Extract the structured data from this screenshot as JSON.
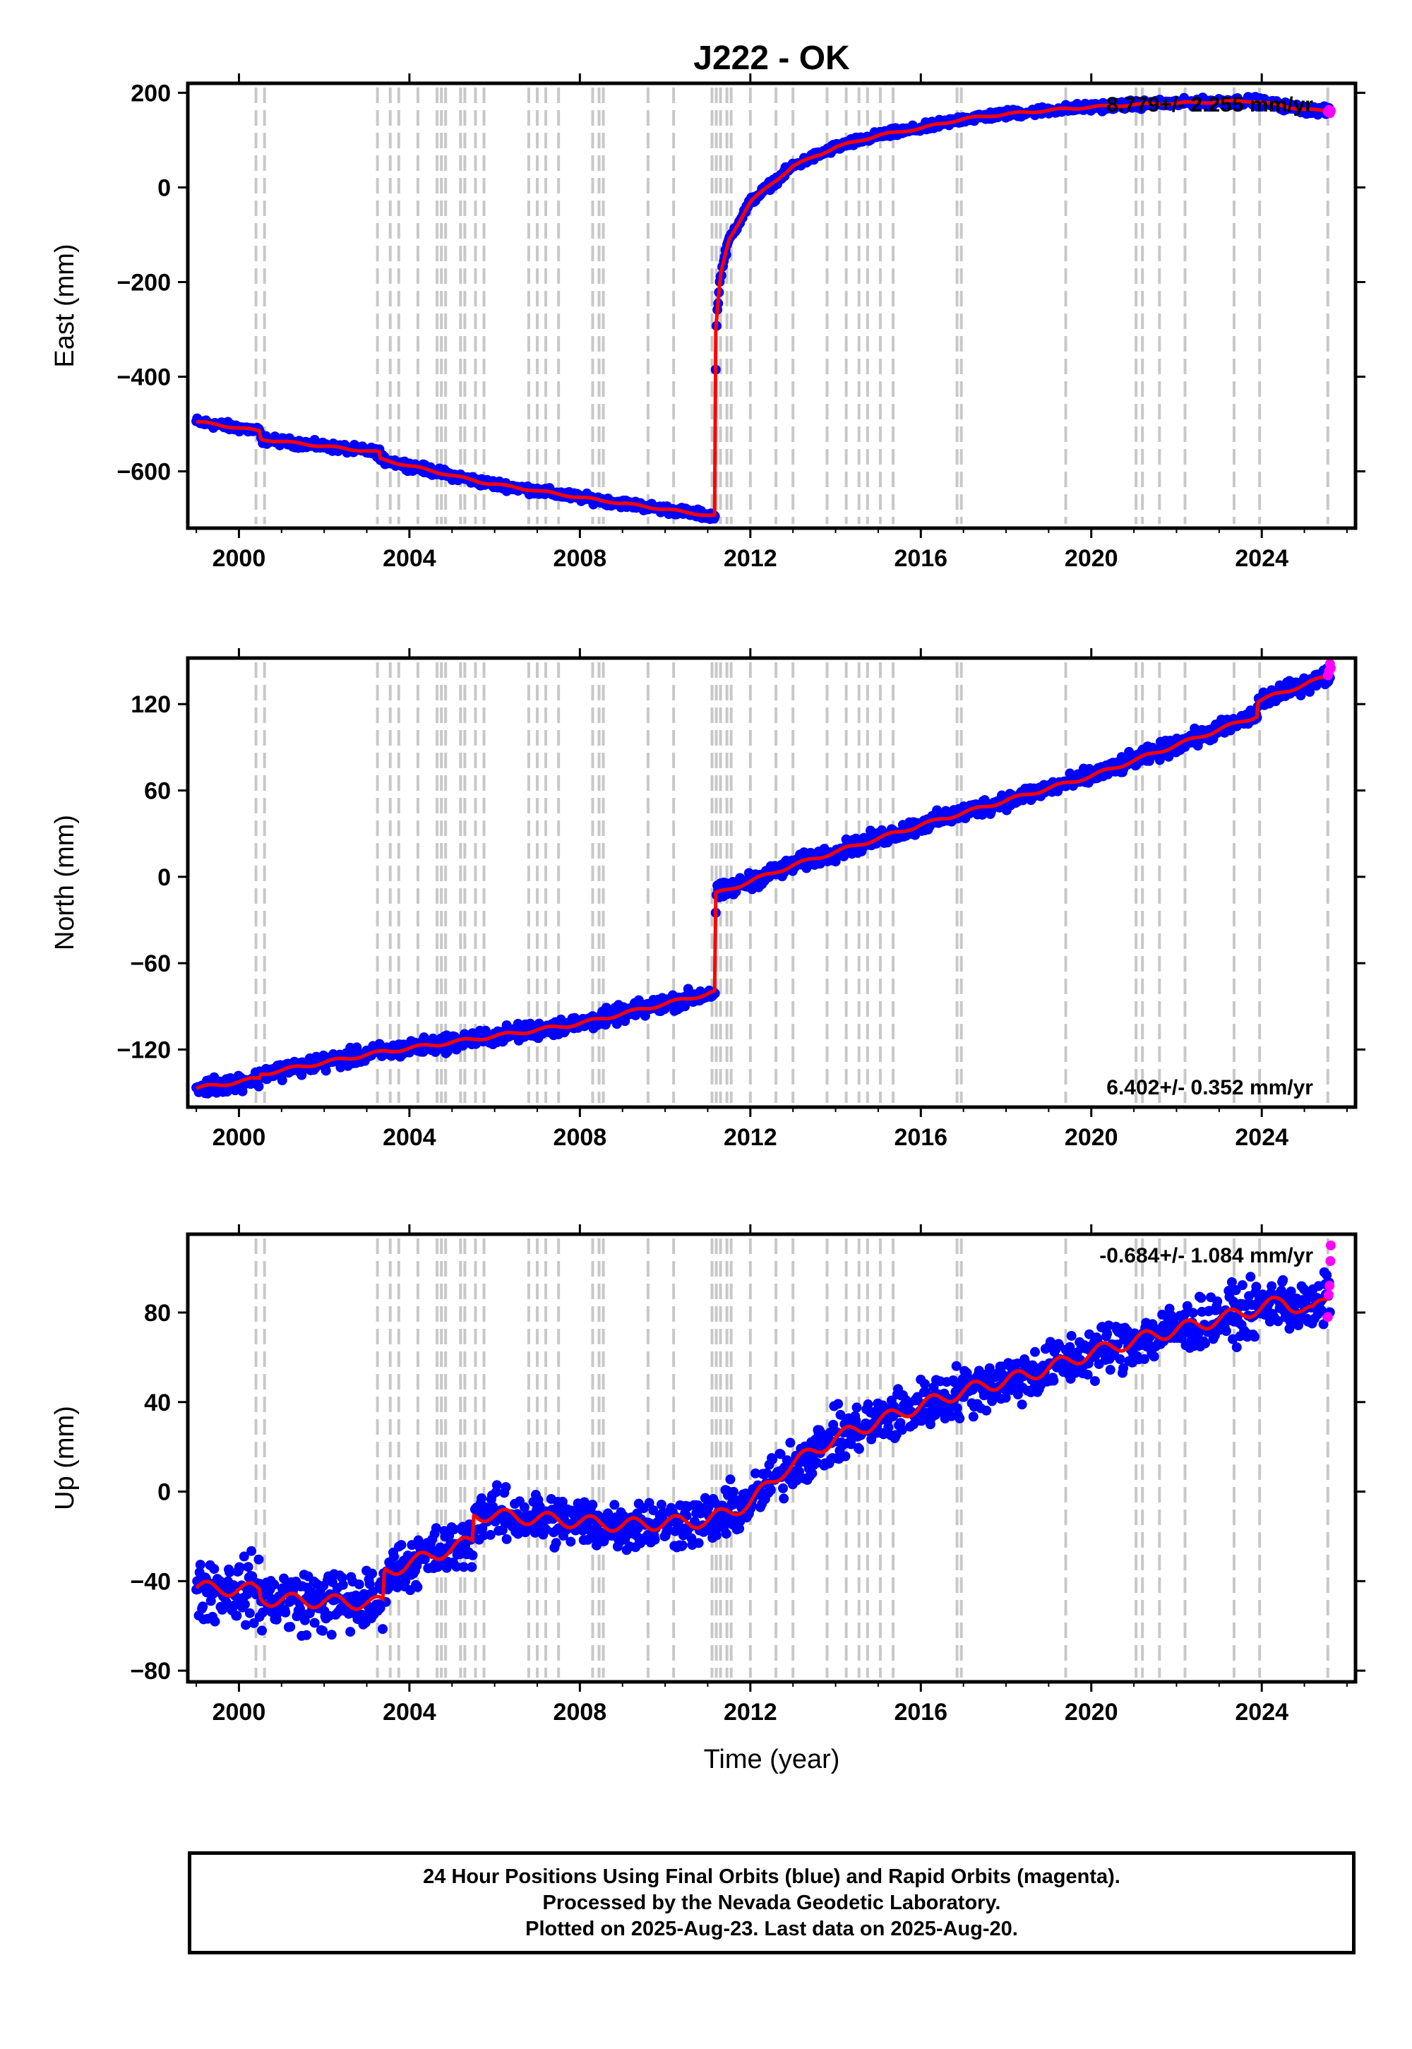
{
  "title": "J222 - OK",
  "footer": {
    "line1": "24 Hour Positions Using Final Orbits (blue) and Rapid Orbits (magenta).",
    "line2": "Processed by the Nevada Geodetic Laboratory.",
    "line3": "Plotted on 2025-Aug-23. Last data on 2025-Aug-20."
  },
  "colors": {
    "final_orbits": "#0000ff",
    "rapid_orbits": "#ff00ff",
    "model": "#ff0000",
    "event_lines": "#c8c8c8"
  },
  "chart_data": [
    {
      "type": "scatter",
      "name": "east",
      "ylabel": "East (mm)",
      "xlabel": "",
      "xlim": [
        1998.8,
        2026.2
      ],
      "ylim": [
        -720,
        220
      ],
      "xticks": [
        2000,
        2004,
        2008,
        2012,
        2016,
        2020,
        2024
      ],
      "xtick_labels": [
        "2000",
        "2004",
        "2008",
        "2012",
        "2016",
        "2020",
        "2024"
      ],
      "yticks": [
        -600,
        -400,
        -200,
        0,
        200
      ],
      "ytick_labels": [
        "−600",
        "−400",
        "−200",
        "0",
        "200"
      ],
      "rate_label": "8.779+/- 2.255 mm/yr",
      "rate_position": "top-right",
      "trend": [
        [
          1999.0,
          -495
        ],
        [
          2000.5,
          -515
        ],
        [
          2000.51,
          -532
        ],
        [
          2003.3,
          -560
        ],
        [
          2003.31,
          -574
        ],
        [
          2005.7,
          -623
        ],
        [
          2008.0,
          -655
        ],
        [
          2011.18,
          -695
        ],
        [
          2011.19,
          -300
        ],
        [
          2011.3,
          -185
        ],
        [
          2011.5,
          -110
        ],
        [
          2012.0,
          -30
        ],
        [
          2013.0,
          45
        ],
        [
          2014.0,
          85
        ],
        [
          2015.0,
          110
        ],
        [
          2016.0,
          125
        ],
        [
          2017.0,
          145
        ],
        [
          2018.0,
          155
        ],
        [
          2019.0,
          163
        ],
        [
          2020.0,
          170
        ],
        [
          2021.0,
          175
        ],
        [
          2022.0,
          178
        ],
        [
          2023.0,
          181
        ],
        [
          2023.8,
          183
        ],
        [
          2024.3,
          175
        ],
        [
          2025.0,
          165
        ],
        [
          2025.6,
          160
        ]
      ],
      "scatter_spread_mm": 6,
      "rapid_points": [
        [
          2025.55,
          160
        ],
        [
          2025.58,
          164
        ],
        [
          2025.6,
          157
        ],
        [
          2025.62,
          162
        ]
      ]
    },
    {
      "type": "scatter",
      "name": "north",
      "ylabel": "North (mm)",
      "xlabel": "",
      "xlim": [
        1998.8,
        2026.2
      ],
      "ylim": [
        -160,
        152
      ],
      "xticks": [
        2000,
        2004,
        2008,
        2012,
        2016,
        2020,
        2024
      ],
      "xtick_labels": [
        "2000",
        "2004",
        "2008",
        "2012",
        "2016",
        "2020",
        "2024"
      ],
      "yticks": [
        -120,
        -60,
        0,
        60,
        120
      ],
      "ytick_labels": [
        "−120",
        "−60",
        "0",
        "60",
        "120"
      ],
      "rate_label": "6.402+/- 0.352 mm/yr",
      "rate_position": "bottom-right",
      "trend": [
        [
          1999.0,
          -147
        ],
        [
          2000.5,
          -140
        ],
        [
          2000.51,
          -137
        ],
        [
          2003.3,
          -122
        ],
        [
          2005.7,
          -112
        ],
        [
          2008.0,
          -102
        ],
        [
          2011.18,
          -80
        ],
        [
          2011.19,
          -12
        ],
        [
          2013.0,
          8
        ],
        [
          2016.0,
          36
        ],
        [
          2020.0,
          70
        ],
        [
          2023.9,
          112
        ],
        [
          2023.91,
          122
        ],
        [
          2025.6,
          140
        ]
      ],
      "scatter_spread_mm": 4,
      "rapid_points": [
        [
          2025.55,
          140
        ],
        [
          2025.58,
          143
        ],
        [
          2025.6,
          148
        ],
        [
          2025.62,
          145
        ]
      ]
    },
    {
      "type": "scatter",
      "name": "up",
      "ylabel": "Up (mm)",
      "xlabel": "Time (year)",
      "xlim": [
        1998.8,
        2026.2
      ],
      "ylim": [
        -85,
        115
      ],
      "xticks": [
        2000,
        2004,
        2008,
        2012,
        2016,
        2020,
        2024
      ],
      "xtick_labels": [
        "2000",
        "2004",
        "2008",
        "2012",
        "2016",
        "2020",
        "2024"
      ],
      "yticks": [
        -80,
        -40,
        0,
        40,
        80
      ],
      "ytick_labels": [
        "−80",
        "−40",
        "0",
        "40",
        "80"
      ],
      "rate_label": "-0.684+/- 1.084 mm/yr",
      "rate_position": "top-right",
      "trend": [
        [
          1999.0,
          -43
        ],
        [
          2000.5,
          -44
        ],
        [
          2000.51,
          -48
        ],
        [
          2003.4,
          -50
        ],
        [
          2003.41,
          -36
        ],
        [
          2005.5,
          -22
        ],
        [
          2005.51,
          -10
        ],
        [
          2007.0,
          -12
        ],
        [
          2009.0,
          -15
        ],
        [
          2011.0,
          -13
        ],
        [
          2012.0,
          -5
        ],
        [
          2012.8,
          10
        ],
        [
          2014.0,
          24
        ],
        [
          2015.5,
          35
        ],
        [
          2017.0,
          45
        ],
        [
          2018.5,
          52
        ],
        [
          2020.0,
          62
        ],
        [
          2021.5,
          70
        ],
        [
          2023.0,
          77
        ],
        [
          2024.5,
          85
        ],
        [
          2025.2,
          80
        ],
        [
          2025.6,
          88
        ]
      ],
      "scatter_spread_mm": 8,
      "rapid_points": [
        [
          2025.55,
          78
        ],
        [
          2025.57,
          88
        ],
        [
          2025.59,
          92
        ],
        [
          2025.61,
          103
        ],
        [
          2025.62,
          110
        ]
      ]
    }
  ],
  "event_lines_years": [
    2000.4,
    2000.6,
    2003.25,
    2003.55,
    2003.75,
    2004.2,
    2004.65,
    2004.75,
    2004.85,
    2005.2,
    2005.3,
    2005.55,
    2005.75,
    2006.8,
    2007.0,
    2007.2,
    2007.5,
    2008.3,
    2008.45,
    2008.55,
    2009.6,
    2010.2,
    2011.1,
    2011.2,
    2011.3,
    2011.45,
    2011.55,
    2012.0,
    2012.6,
    2013.0,
    2013.8,
    2014.25,
    2014.55,
    2014.75,
    2015.05,
    2015.35,
    2016.85,
    2016.95,
    2019.4,
    2021.05,
    2021.2,
    2021.6,
    2022.2,
    2023.35,
    2023.95,
    2025.55
  ]
}
